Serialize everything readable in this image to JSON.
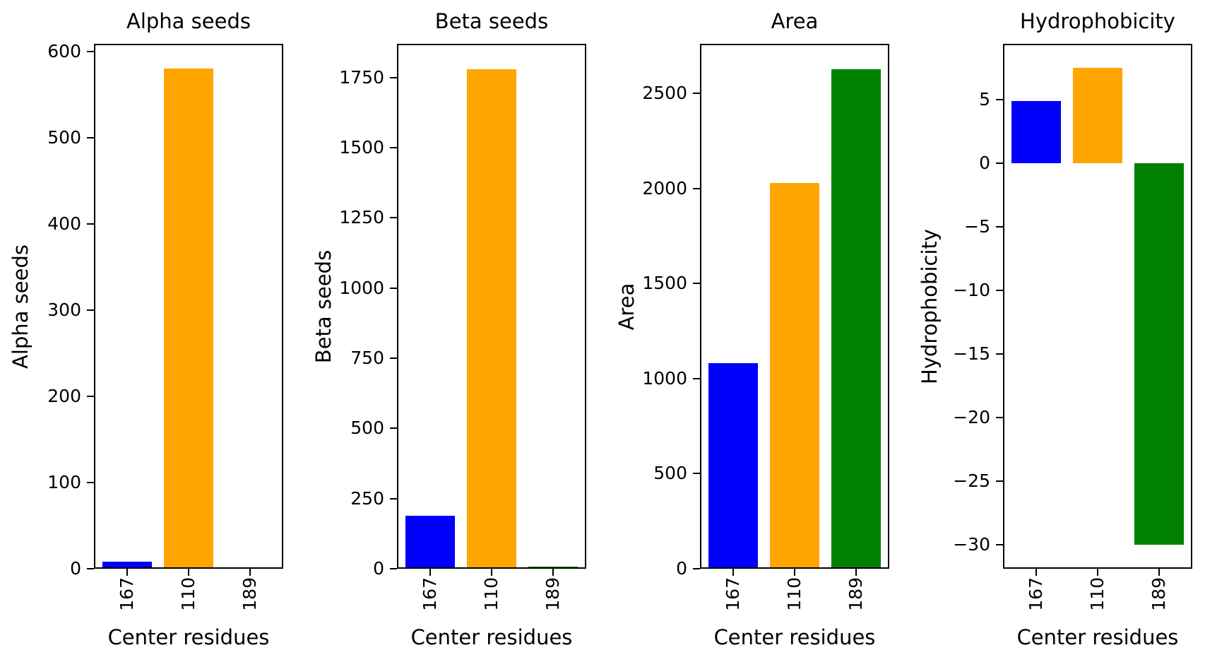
{
  "chart_data": [
    {
      "type": "bar",
      "title": "Alpha seeds",
      "ylabel": "Alpha seeds",
      "xlabel": "Center residues",
      "categories": [
        "167",
        "110",
        "189"
      ],
      "values": [
        8,
        580,
        0
      ],
      "colors": [
        "#0000ff",
        "#ffa500",
        "#008000"
      ],
      "ylim": [
        0,
        609
      ],
      "yticks": [
        0,
        100,
        200,
        300,
        400,
        500,
        600
      ],
      "ytick_labels": [
        "0",
        "100",
        "200",
        "300",
        "400",
        "500",
        "600"
      ],
      "grid": false,
      "legend": "none"
    },
    {
      "type": "bar",
      "title": "Beta seeds",
      "ylabel": "Beta seeds",
      "xlabel": "Center residues",
      "categories": [
        "167",
        "110",
        "189"
      ],
      "values": [
        190,
        1780,
        8
      ],
      "colors": [
        "#0000ff",
        "#ffa500",
        "#008000"
      ],
      "ylim": [
        0,
        1870
      ],
      "yticks": [
        0,
        250,
        500,
        750,
        1000,
        1250,
        1500,
        1750
      ],
      "ytick_labels": [
        "0",
        "250",
        "500",
        "750",
        "1000",
        "1250",
        "1500",
        "1750"
      ],
      "grid": false,
      "legend": "none"
    },
    {
      "type": "bar",
      "title": "Area",
      "ylabel": "Area",
      "xlabel": "Center residues",
      "categories": [
        "167",
        "110",
        "189"
      ],
      "values": [
        1080,
        2030,
        2630
      ],
      "colors": [
        "#0000ff",
        "#ffa500",
        "#008000"
      ],
      "ylim": [
        0,
        2762
      ],
      "yticks": [
        0,
        500,
        1000,
        1500,
        2000,
        2500
      ],
      "ytick_labels": [
        "0",
        "500",
        "1000",
        "1500",
        "2000",
        "2500"
      ],
      "grid": false,
      "legend": "none"
    },
    {
      "type": "bar",
      "title": "Hydrophobicity",
      "ylabel": "Hydrophobicity",
      "xlabel": "Center residues",
      "categories": [
        "167",
        "110",
        "189"
      ],
      "values": [
        4.9,
        7.5,
        -30
      ],
      "colors": [
        "#0000ff",
        "#ffa500",
        "#008000"
      ],
      "ylim": [
        -31.9,
        9.4
      ],
      "yticks": [
        5,
        0,
        -5,
        -10,
        -15,
        -20,
        -25,
        -30
      ],
      "ytick_labels": [
        "5",
        "0",
        "−5",
        "−10",
        "−15",
        "−20",
        "−25",
        "−30"
      ],
      "grid": false,
      "legend": "none"
    }
  ]
}
